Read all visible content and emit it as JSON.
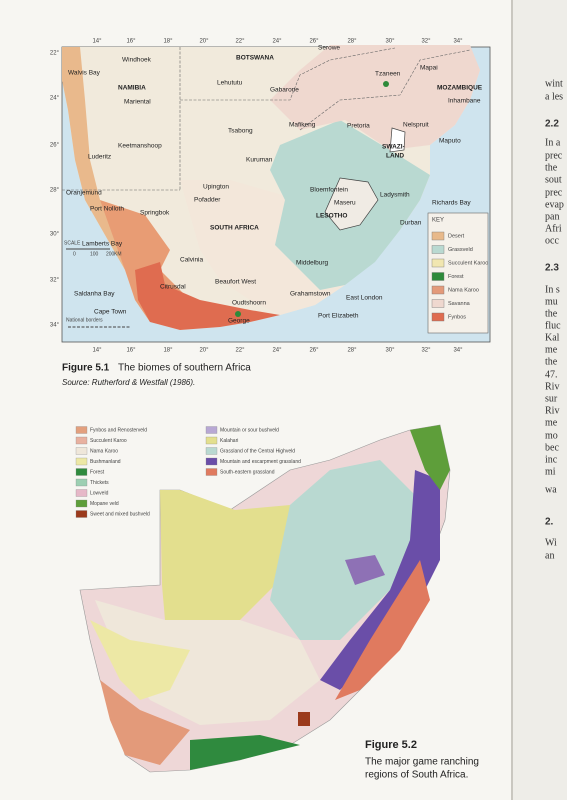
{
  "figure1": {
    "lon_ticks": [
      "14°",
      "16°",
      "18°",
      "20°",
      "22°",
      "24°",
      "26°",
      "28°",
      "30°",
      "32°",
      "34°"
    ],
    "lat_ticks": [
      "22°",
      "24°",
      "26°",
      "28°",
      "30°",
      "32°",
      "34°"
    ],
    "places": [
      "Windhoek",
      "Walvis Bay",
      "NAMIBIA",
      "Mariental",
      "Keetmanshoop",
      "Luderitz",
      "Oranjemund",
      "Port Nolloth",
      "Springbok",
      "Pofadder",
      "Upington",
      "BOTSWANA",
      "Serowe",
      "Lehututu",
      "Gabarone",
      "Tsabong",
      "Mafikeng",
      "Pretoria",
      "Tzaneen",
      "Mapai",
      "MOZAMBIQUE",
      "Inhambane",
      "Nelspruit",
      "Maputo",
      "SWAZI-",
      "LAND",
      "Kuruman",
      "Bloemfontein",
      "Maseru",
      "LESOTHO",
      "Ladysmith",
      "Richards Bay",
      "Durban",
      "SOUTH AFRICA",
      "Calvinia",
      "Middelburg",
      "Lamberts Bay",
      "Saldanha Bay",
      "Cape Town",
      "Citrusdal",
      "Beaufort West",
      "Grahamstown",
      "East London",
      "Oudtshoorn",
      "George",
      "Port Elizabeth"
    ],
    "scale": [
      "SCALE",
      "0",
      "100",
      "200",
      "KM"
    ],
    "borders_label": "National borders",
    "key_title": "KEY",
    "key": [
      "Desert",
      "Grassveld",
      "Succulent Karoo",
      "Forest",
      "Nama Karoo",
      "Savanna",
      "Fynbos"
    ],
    "caption_label": "Figure 5.1",
    "caption": "The biomes of southern Africa",
    "source": "Source: Rutherford & Westfall (1986)."
  },
  "figure2": {
    "legend_left": [
      "Fynbos and Renosterveld",
      "Succulent Karoo",
      "Nama Karoo",
      "Bushmanland",
      "Forest",
      "Thickets",
      "Lowveld",
      "Mopane veld",
      "Sweet and mixed bushveld"
    ],
    "legend_right": [
      "Mountain or sour bushveld",
      "Kalahari",
      "Grassland of the Central Highveld",
      "Mountain and escarpment grassland",
      "South-eastern grassland"
    ],
    "caption_label": "Figure 5.2",
    "caption_lines": [
      "The major game ranching",
      "regions of South Africa."
    ]
  },
  "right_page": [
    "wint",
    "a les",
    "2.2",
    "In a",
    "prec",
    "the",
    "sout",
    "prec",
    "evap",
    "pan",
    "Afri",
    "occ",
    "2.3",
    "In s",
    "mu",
    "the",
    "fluc",
    "Kal",
    "me",
    "the",
    "47.",
    "Riv",
    "sur",
    "Riv",
    "me",
    "mo",
    "bec",
    "inc",
    "mi",
    "wa",
    "2.",
    "Wi",
    "an"
  ]
}
